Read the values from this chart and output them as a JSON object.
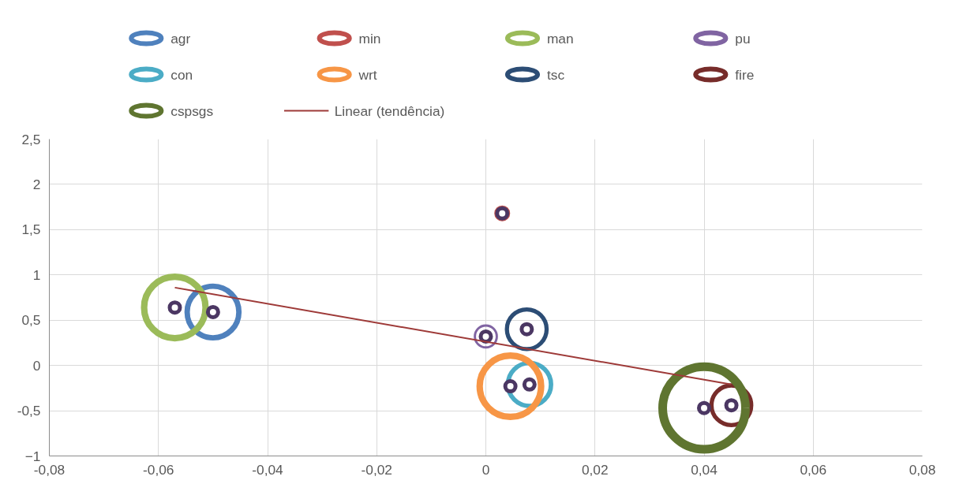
{
  "chart_data": {
    "type": "bubble",
    "xlim": [
      -0.08,
      0.08
    ],
    "ylim": [
      -1,
      2.5
    ],
    "xticks": [
      {
        "value": -0.08,
        "label": "-0,08"
      },
      {
        "value": -0.06,
        "label": "-0,06"
      },
      {
        "value": -0.04,
        "label": "-0,04"
      },
      {
        "value": -0.02,
        "label": "-0,02"
      },
      0,
      {
        "value": 0.02,
        "label": "0,02"
      },
      {
        "value": 0.04,
        "label": "0,04"
      },
      {
        "value": 0.06,
        "label": "0,06"
      },
      {
        "value": 0.08,
        "label": "0,08"
      }
    ],
    "yticks": [
      -1,
      {
        "value": -0.5,
        "label": "-0,5"
      },
      0,
      {
        "value": 0.5,
        "label": "0,5"
      },
      1,
      {
        "value": 1.5,
        "label": "1,5"
      },
      2,
      {
        "value": 2.5,
        "label": "2,5"
      }
    ],
    "grid": true,
    "legend": "top",
    "series": [
      {
        "name": "agr",
        "color": "#4f81bd",
        "x": [
          -0.05
        ],
        "values": [
          0.59
        ],
        "sizes": [
          0.39
        ]
      },
      {
        "name": "min",
        "color": "#c0504d",
        "x": [
          0.003
        ],
        "values": [
          1.68
        ],
        "sizes": [
          0.03
        ]
      },
      {
        "name": "man",
        "color": "#9bbb59",
        "x": [
          -0.057
        ],
        "values": [
          0.64
        ],
        "sizes": [
          0.55
        ]
      },
      {
        "name": "pu",
        "color": "#8064a2",
        "x": [
          0.0
        ],
        "values": [
          0.32
        ],
        "sizes": [
          0.07
        ]
      },
      {
        "name": "con",
        "color": "#4bacc6",
        "x": [
          0.008
        ],
        "values": [
          -0.21
        ],
        "sizes": [
          0.27
        ]
      },
      {
        "name": "wrt",
        "color": "#f79646",
        "x": [
          0.0045
        ],
        "values": [
          -0.23
        ],
        "sizes": [
          0.55
        ]
      },
      {
        "name": "tsc",
        "color": "#2c4d75",
        "x": [
          0.0075
        ],
        "values": [
          0.4
        ],
        "sizes": [
          0.23
        ]
      },
      {
        "name": "fire",
        "color": "#772c2a",
        "x": [
          0.045
        ],
        "values": [
          -0.44
        ],
        "sizes": [
          0.23
        ]
      },
      {
        "name": "cspsgs",
        "color": "#5f7530",
        "x": [
          0.04
        ],
        "values": [
          -0.47
        ],
        "sizes": [
          1
        ]
      },
      {
        "type": "scatter",
        "color": "#4b3763",
        "marker": "circle",
        "x": [
          -0.05,
          0.003,
          -0.057,
          0.0,
          0.008,
          0.0045,
          0.0075,
          0.045,
          0.04
        ],
        "values": [
          0.59,
          1.68,
          0.64,
          0.32,
          -0.21,
          -0.23,
          0.4,
          -0.44,
          -0.47
        ]
      },
      {
        "name": "Linear (tendência)",
        "type": "line",
        "color": "#9e3a38",
        "x": [
          -0.057,
          0.045
        ],
        "values": [
          0.86,
          -0.21
        ]
      }
    ]
  }
}
